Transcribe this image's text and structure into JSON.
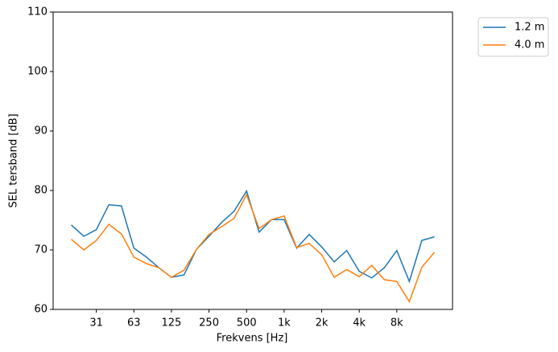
{
  "chart_data": {
    "type": "line",
    "xlabel": "Frekvens [Hz]",
    "ylabel": "SEL tersband [dB]",
    "categories": [
      null,
      null,
      "31",
      null,
      null,
      "63",
      null,
      null,
      "125",
      null,
      null,
      "250",
      null,
      null,
      "500",
      null,
      null,
      "1k",
      null,
      null,
      "2k",
      null,
      null,
      "4k",
      null,
      null,
      "8k",
      null,
      null,
      null
    ],
    "series": [
      {
        "name": "1.2 m",
        "color": "#1f77b4",
        "values": [
          74.2,
          72.3,
          73.4,
          77.6,
          77.4,
          70.3,
          68.8,
          67.0,
          65.4,
          65.8,
          70.1,
          72.3,
          74.6,
          76.5,
          79.9,
          73.0,
          75.1,
          75.1,
          70.3,
          72.6,
          70.5,
          68.0,
          69.9,
          66.4,
          65.3,
          67.0,
          69.9,
          64.7,
          71.6,
          72.2
        ]
      },
      {
        "name": "4.0 m",
        "color": "#ff7f0e",
        "values": [
          71.8,
          70.0,
          71.6,
          74.3,
          72.7,
          68.8,
          67.7,
          67.0,
          65.4,
          66.6,
          70.1,
          72.6,
          73.9,
          75.3,
          79.3,
          73.6,
          75.1,
          75.7,
          70.4,
          71.1,
          69.2,
          65.4,
          66.7,
          65.5,
          67.4,
          65.0,
          64.7,
          61.3,
          67.1,
          69.6
        ]
      }
    ],
    "ylim": [
      60,
      110
    ],
    "yticks": [
      60,
      70,
      80,
      90,
      100,
      110
    ],
    "legend": "outside upper right",
    "grid": false
  }
}
